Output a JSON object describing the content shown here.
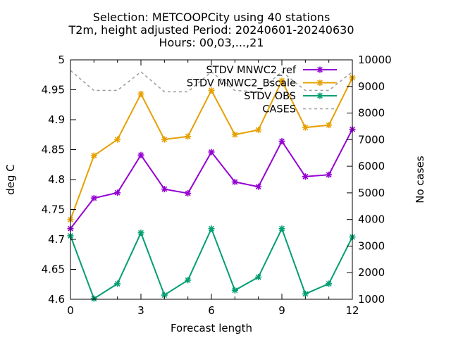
{
  "chart_data": {
    "type": "line",
    "title_lines": [
      "Selection: METCOOPCity using     40 stations",
      "T2m, height adjusted   Period: 20240601-20240630",
      "Hours: 00,03,...,21"
    ],
    "xlabel": "Forecast length",
    "ylabel": "deg C",
    "y2label": "No cases",
    "xlim": [
      0,
      12
    ],
    "ylim": [
      4.6,
      5.0
    ],
    "y2lim": [
      1000,
      10000
    ],
    "xticks": [
      "0",
      "3",
      "6",
      "9",
      "12"
    ],
    "yticks": [
      "4.6",
      "4.65",
      "4.7",
      "4.75",
      "4.8",
      "4.85",
      "4.9",
      "4.95",
      "5"
    ],
    "y2ticks": [
      "1000",
      "2000",
      "3000",
      "4000",
      "5000",
      "6000",
      "7000",
      "8000",
      "9000",
      "10000"
    ],
    "x": [
      0,
      1,
      2,
      3,
      4,
      5,
      6,
      7,
      8,
      9,
      10,
      11,
      12
    ],
    "legend_position": "top-right",
    "series": [
      {
        "name": "STDV MNWC2_ref",
        "axis": "left",
        "color": "#9400d3",
        "marker": "star",
        "values": [
          4.718,
          4.769,
          4.778,
          4.841,
          4.784,
          4.777,
          4.846,
          4.796,
          4.788,
          4.864,
          4.805,
          4.808,
          4.884
        ]
      },
      {
        "name": "STDV MNWC2_Bscale",
        "axis": "left",
        "color": "#e6a000",
        "marker": "star",
        "values": [
          4.733,
          4.84,
          4.867,
          4.943,
          4.867,
          4.872,
          4.949,
          4.875,
          4.883,
          4.965,
          4.887,
          4.891,
          4.97
        ]
      },
      {
        "name": "STDV OBS",
        "axis": "left",
        "color": "#009e73",
        "marker": "star",
        "values": [
          4.706,
          4.601,
          4.626,
          4.711,
          4.607,
          4.632,
          4.718,
          4.615,
          4.637,
          4.718,
          4.609,
          4.626,
          4.704
        ]
      },
      {
        "name": "CASES",
        "axis": "right",
        "color": "#a0a0a0",
        "marker": "none",
        "dashed": true,
        "values": [
          9600,
          8850,
          8850,
          9550,
          8800,
          8800,
          9550,
          8850,
          8800,
          9550,
          8850,
          8850,
          9550
        ]
      }
    ]
  }
}
